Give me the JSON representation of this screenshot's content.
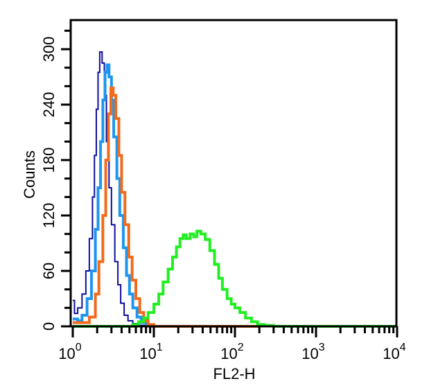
{
  "chart_data": {
    "type": "line",
    "subtype": "flow-cytometry-histogram",
    "title": "",
    "xlabel": "FL2-H",
    "ylabel": "Counts",
    "xscale": "log",
    "xlim": [
      1,
      10000
    ],
    "ylim": [
      0,
      330
    ],
    "x_ticks": [
      {
        "value": 1,
        "base": "10",
        "exp": "0"
      },
      {
        "value": 10,
        "base": "10",
        "exp": "1"
      },
      {
        "value": 100,
        "base": "10",
        "exp": "2"
      },
      {
        "value": 1000,
        "base": "10",
        "exp": "3"
      },
      {
        "value": 10000,
        "base": "10",
        "exp": "4"
      }
    ],
    "y_ticks": [
      0,
      60,
      120,
      180,
      240,
      300
    ],
    "y_minor_step": 20,
    "grid": false,
    "legend": null,
    "series": [
      {
        "name": "series-navy",
        "color": "#0c0c9c",
        "stroke_width": 2,
        "points": [
          [
            1.0,
            28
          ],
          [
            1.05,
            14
          ],
          [
            1.15,
            20
          ],
          [
            1.3,
            35
          ],
          [
            1.45,
            60
          ],
          [
            1.6,
            95
          ],
          [
            1.75,
            140
          ],
          [
            1.85,
            185
          ],
          [
            1.95,
            235
          ],
          [
            2.05,
            275
          ],
          [
            2.15,
            297
          ],
          [
            2.3,
            285
          ],
          [
            2.45,
            250
          ],
          [
            2.6,
            200
          ],
          [
            2.8,
            150
          ],
          [
            3.0,
            110
          ],
          [
            3.3,
            70
          ],
          [
            3.6,
            45
          ],
          [
            3.9,
            25
          ],
          [
            4.3,
            12
          ],
          [
            4.8,
            6
          ],
          [
            5.5,
            3
          ],
          [
            6.5,
            1
          ],
          [
            8,
            0
          ],
          [
            10,
            0
          ]
        ]
      },
      {
        "name": "series-lightblue",
        "color": "#1e96ee",
        "stroke_width": 4,
        "points": [
          [
            1.0,
            8
          ],
          [
            1.15,
            6
          ],
          [
            1.3,
            12
          ],
          [
            1.5,
            30
          ],
          [
            1.7,
            60
          ],
          [
            1.9,
            105
          ],
          [
            2.05,
            150
          ],
          [
            2.2,
            200
          ],
          [
            2.35,
            245
          ],
          [
            2.5,
            275
          ],
          [
            2.65,
            283
          ],
          [
            2.8,
            270
          ],
          [
            3.0,
            245
          ],
          [
            3.2,
            205
          ],
          [
            3.5,
            160
          ],
          [
            3.8,
            120
          ],
          [
            4.2,
            85
          ],
          [
            4.6,
            55
          ],
          [
            5.0,
            35
          ],
          [
            5.5,
            20
          ],
          [
            6.2,
            10
          ],
          [
            7.0,
            4
          ],
          [
            8,
            1
          ],
          [
            9,
            0
          ],
          [
            10,
            0
          ]
        ]
      },
      {
        "name": "series-orange",
        "color": "#f26a1b",
        "stroke_width": 4,
        "points": [
          [
            1.0,
            4
          ],
          [
            1.3,
            4
          ],
          [
            1.6,
            10
          ],
          [
            1.9,
            35
          ],
          [
            2.1,
            70
          ],
          [
            2.35,
            120
          ],
          [
            2.55,
            180
          ],
          [
            2.75,
            230
          ],
          [
            2.95,
            258
          ],
          [
            3.15,
            250
          ],
          [
            3.4,
            225
          ],
          [
            3.7,
            185
          ],
          [
            4.0,
            145
          ],
          [
            4.4,
            110
          ],
          [
            4.9,
            75
          ],
          [
            5.4,
            50
          ],
          [
            6.0,
            30
          ],
          [
            6.7,
            15
          ],
          [
            7.5,
            6
          ],
          [
            8.5,
            2
          ],
          [
            10,
            0
          ],
          [
            100,
            0
          ],
          [
            200,
            0
          ]
        ]
      },
      {
        "name": "series-green",
        "color": "#22ee22",
        "stroke_width": 4,
        "points": [
          [
            1.0,
            0
          ],
          [
            4.5,
            0
          ],
          [
            5.5,
            2
          ],
          [
            6.5,
            5
          ],
          [
            7.5,
            9
          ],
          [
            8.5,
            15
          ],
          [
            10,
            24
          ],
          [
            11.5,
            35
          ],
          [
            13,
            48
          ],
          [
            15,
            62
          ],
          [
            17,
            75
          ],
          [
            19,
            86
          ],
          [
            21,
            95
          ],
          [
            23,
            99
          ],
          [
            25,
            95
          ],
          [
            28,
            100
          ],
          [
            31,
            97
          ],
          [
            34,
            103
          ],
          [
            38,
            100
          ],
          [
            43,
            94
          ],
          [
            49,
            82
          ],
          [
            56,
            67
          ],
          [
            63,
            52
          ],
          [
            70,
            40
          ],
          [
            80,
            30
          ],
          [
            90,
            24
          ],
          [
            100,
            20
          ],
          [
            115,
            15
          ],
          [
            135,
            9
          ],
          [
            160,
            5
          ],
          [
            190,
            2
          ],
          [
            230,
            1
          ],
          [
            300,
            0
          ],
          [
            10000,
            0
          ]
        ]
      }
    ]
  }
}
